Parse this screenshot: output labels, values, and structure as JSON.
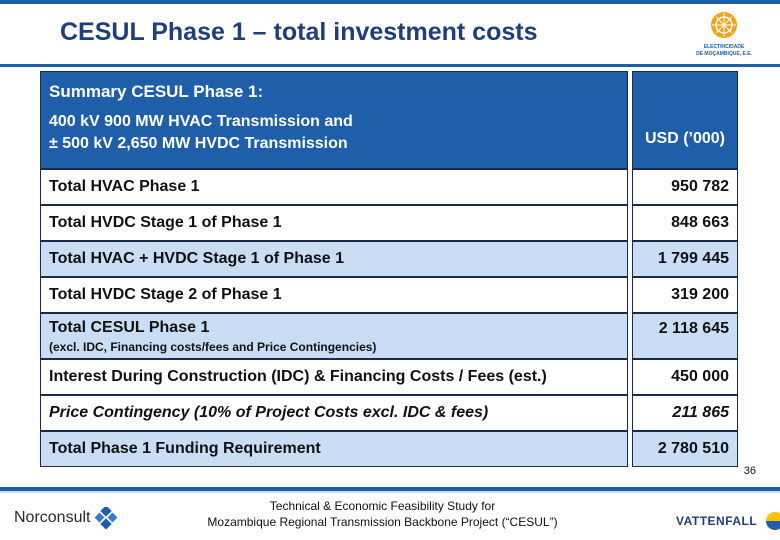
{
  "title": "CESUL Phase 1 – total investment costs",
  "logo_text": [
    "ELECTRICIDADE",
    "DE MOÇAMBIQUE, E.E."
  ],
  "header": {
    "summary": "Summary CESUL Phase 1:",
    "line_a": "400 kV 900 MW HVAC Transmission and",
    "line_b": "± 500 kV 2,650 MW HVDC Transmission",
    "unit": "USD (’000)"
  },
  "rows": [
    {
      "label": "Total HVAC Phase 1",
      "value": "950 782"
    },
    {
      "label": "Total HVDC Stage 1 of Phase 1",
      "value": "848 663"
    },
    {
      "label": "Total HVAC + HVDC Stage 1 of Phase 1",
      "value": "1 799 445"
    },
    {
      "label": "Total HVDC Stage 2 of Phase 1",
      "value": "319 200"
    },
    {
      "label": "Total CESUL Phase 1",
      "note": "(excl. IDC, Financing costs/fees and Price Contingencies)",
      "value": "2 118 645"
    },
    {
      "label": "Interest During Construction (IDC) & Financing Costs / Fees (est.)",
      "value": "450 000"
    },
    {
      "label": "Price Contingency (10% of Project Costs excl. IDC & fees)",
      "value": "211 865"
    },
    {
      "label": "Total Phase 1 Funding Requirement",
      "value": "2 780 510"
    }
  ],
  "page_number": "36",
  "footer": {
    "line1": "Technical & Economic Feasibility Study for",
    "line2": "Mozambique Regional Transmission Backbone Project (“CESUL”)",
    "left_logo": "Norconsult",
    "right_logo": "VATTENFALL"
  },
  "colors": {
    "accent": "#1f5ea8",
    "row_highlight": "#c9ddf4",
    "title": "#1f3f7a"
  }
}
